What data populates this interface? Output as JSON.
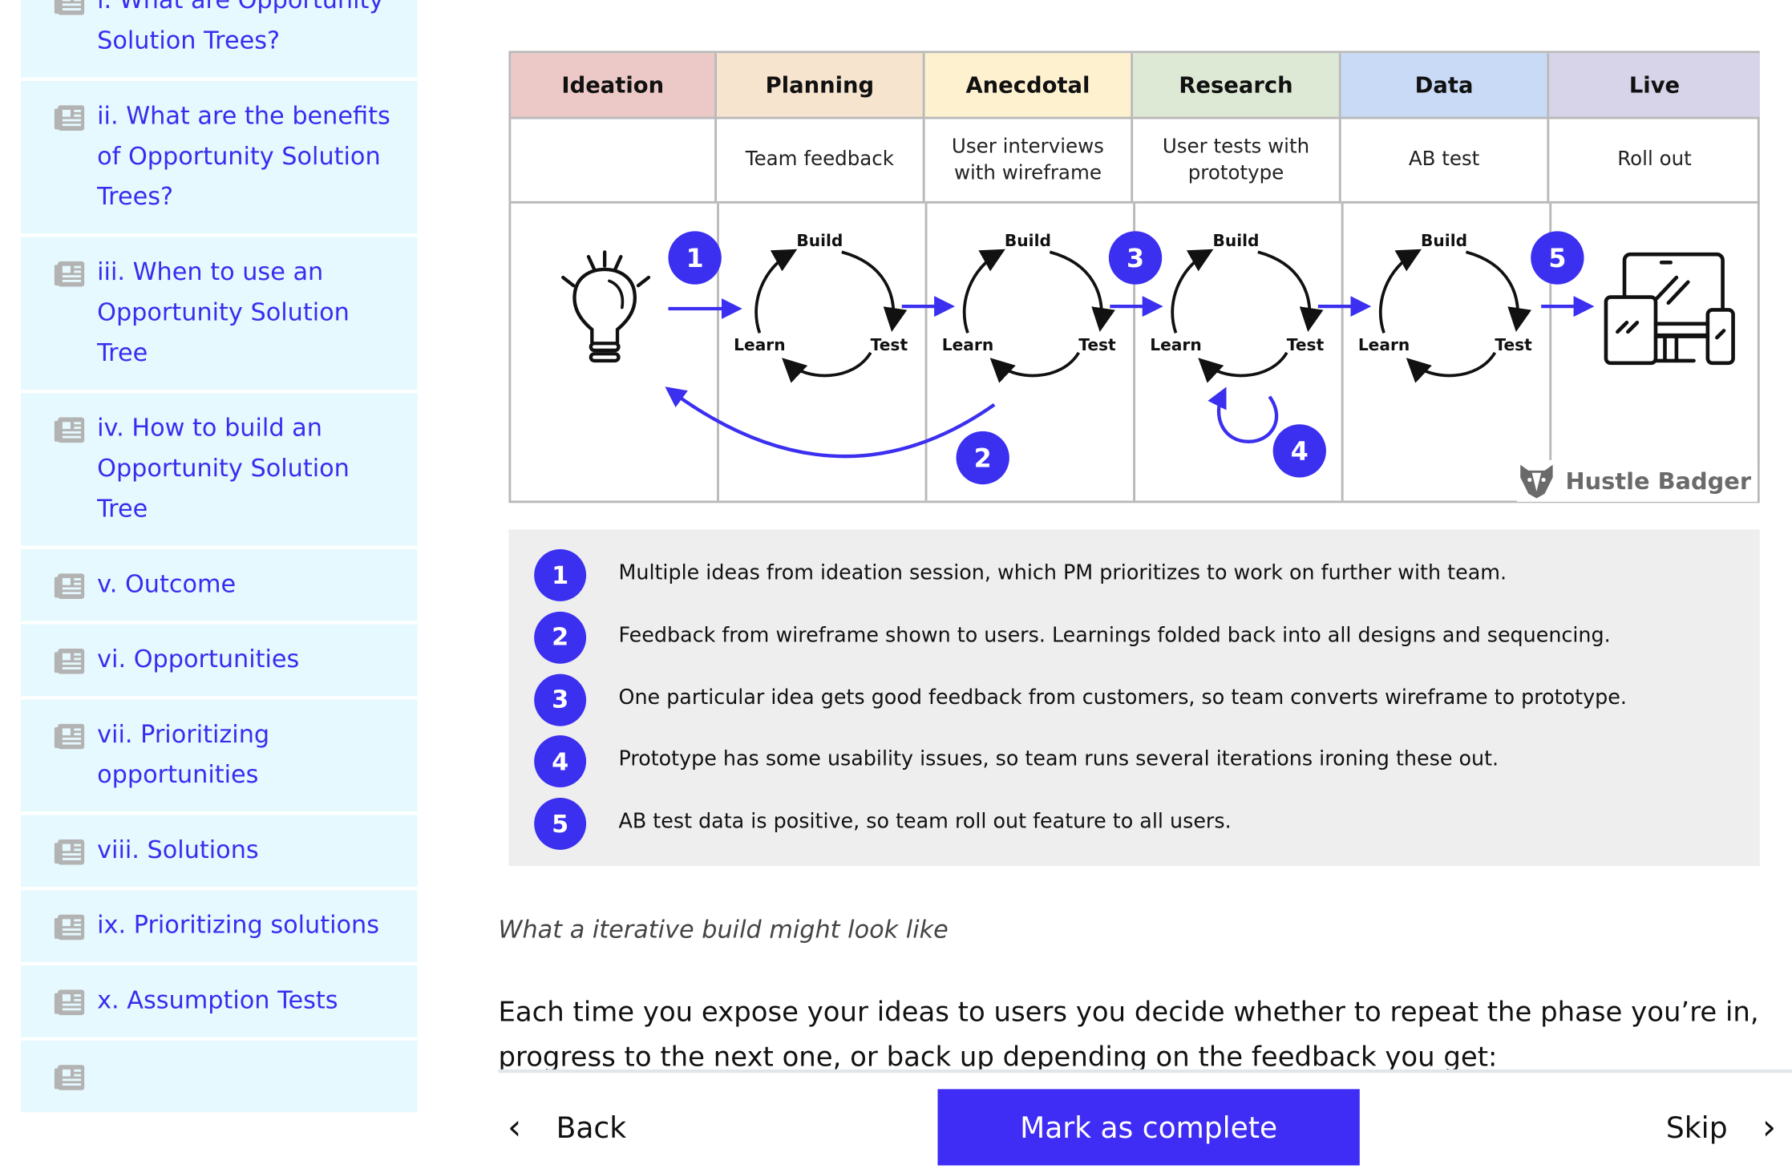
{
  "sidebar": {
    "items": [
      {
        "label": "i. What are Opportunity Solution Trees?"
      },
      {
        "label": "ii. What are the benefits of Opportunity Solution Trees?"
      },
      {
        "label": "iii. When to use an Opportunity Solution Tree"
      },
      {
        "label": "iv. How to build an Opportunity Solution Tree"
      },
      {
        "label": "v. Outcome"
      },
      {
        "label": "vi. Opportunities"
      },
      {
        "label": "vii. Prioritizing opportunities"
      },
      {
        "label": "viii. Solutions"
      },
      {
        "label": "ix. Prioritizing solutions"
      },
      {
        "label": "x. Assumption Tests"
      }
    ],
    "icon": "newspaper-icon"
  },
  "diagram": {
    "phases": [
      {
        "label": "Ideation",
        "sub": "",
        "color": "#ecc9c7"
      },
      {
        "label": "Planning",
        "sub": "Team feedback",
        "color": "#f6e4cf"
      },
      {
        "label": "Anecdotal",
        "sub": "User interviews with wireframe",
        "color": "#fdf1cf"
      },
      {
        "label": "Research",
        "sub": "User tests with prototype",
        "color": "#dde9d5"
      },
      {
        "label": "Data",
        "sub": "AB test",
        "color": "#c9daf6"
      },
      {
        "label": "Live",
        "sub": "Roll out",
        "color": "#d7d3e8"
      }
    ],
    "cycle": {
      "build": "Build",
      "learn": "Learn",
      "test": "Test"
    },
    "markers": [
      "1",
      "2",
      "3",
      "4",
      "5"
    ],
    "logo": "Hustle Badger",
    "accent": "#3b2ff0"
  },
  "legend": [
    {
      "num": "1",
      "text": "Multiple ideas from ideation session, which PM prioritizes to work on further with team."
    },
    {
      "num": "2",
      "text": "Feedback from wireframe shown to users. Learnings folded back into all designs and sequencing."
    },
    {
      "num": "3",
      "text": "One particular idea gets good feedback from customers, so team converts wireframe to prototype."
    },
    {
      "num": "4",
      "text": "Prototype has some usability issues, so team runs several iterations ironing these out."
    },
    {
      "num": "5",
      "text": "AB test data is positive, so team roll out feature to all users."
    }
  ],
  "caption": "What a iterative build might look like",
  "paragraph": "Each time you expose your ideas to users you decide whether to repeat the phase you’re in, progress to the next one, or back up depending on the feedback you get:",
  "nav": {
    "back": "Back",
    "mark_complete": "Mark as complete",
    "skip": "Skip",
    "button_color": "#3f2cf5"
  }
}
